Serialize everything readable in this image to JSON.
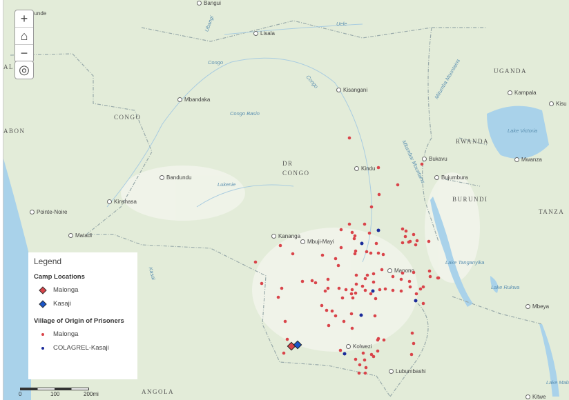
{
  "colors": {
    "malonga": "#d9444a",
    "kasaji": "#1a55c8",
    "colagrel": "#1a2a9a",
    "water": "#a9d2ea",
    "land": "#e3ecd9"
  },
  "controls": {
    "zoom_in": "+",
    "zoom_out": "−",
    "home_icon": "home-icon",
    "locate_icon": "locate-icon"
  },
  "labels": {
    "countries": [
      "CONGO",
      "DR",
      "CONGO",
      "UGANDA",
      "RWANDA",
      "BURUNDI",
      "TANZA",
      "ANGOLA",
      "ABON",
      "AL"
    ],
    "cities": [
      "Bangui",
      "ounde",
      "Lisala",
      "Kisangani",
      "Mbandaka",
      "Kampala",
      "Kisu",
      "Bukavu",
      "Kindu",
      "Mwanza",
      "Bujumbura",
      "Bandundu",
      "Kinshasa",
      "Pointe-Noire",
      "Matadi",
      "Kananga",
      "Mbuji-Mayi",
      "Manono",
      "Kolwezi",
      "Lubumbashi",
      "Mbeya",
      "Kitwe"
    ],
    "water": [
      "Uele",
      "Congo",
      "Congo",
      "Ubangi",
      "Congo Basin",
      "Lukenie",
      "Kasai",
      "Lake Victoria",
      "Lake Tanganyika",
      "Lake Rukwa",
      "Lake Malawi"
    ],
    "mountains": [
      "Mitumba Mountains",
      "Mitumbar Mountains"
    ]
  },
  "legend": {
    "title": "Legend",
    "camp_heading": "Camp Locations",
    "camps": [
      "Malonga",
      "Kasaji"
    ],
    "village_heading": "Village of Origin of Prisoners",
    "villages": [
      "Malonga",
      "COLAGREL-Kasaji"
    ]
  },
  "scale": {
    "ticks": [
      "0",
      "100",
      "200mi"
    ]
  }
}
